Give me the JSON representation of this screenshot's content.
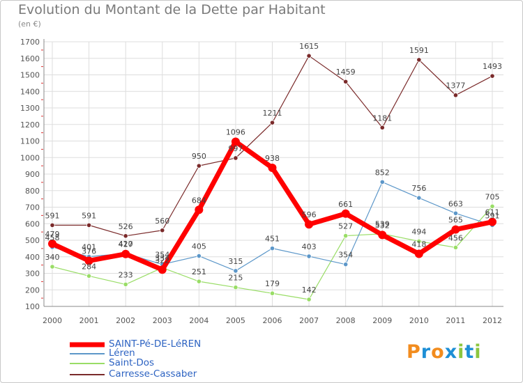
{
  "title": "Evolution du Montant de la Dette par Habitant",
  "subtitle": "(en €)",
  "logo_text": "Proxiti",
  "colors": {
    "saint_pe": "#ff0000",
    "leren": "#5c97c9",
    "saint_dos": "#99dd66",
    "carresse": "#7a2a2a",
    "grid": "#dddddd",
    "axis_text": "#555555"
  },
  "chart_data": {
    "type": "line",
    "title": "Evolution du Montant de la Dette par Habitant",
    "subtitle": "(en €)",
    "x": [
      "2000",
      "2001",
      "2002",
      "2003",
      "2004",
      "2005",
      "2006",
      "2007",
      "2008",
      "2009",
      "2010",
      "2011",
      "2012"
    ],
    "ylim": [
      100,
      1700
    ],
    "yticks": [
      100,
      200,
      300,
      400,
      500,
      600,
      700,
      800,
      900,
      1000,
      1100,
      1200,
      1300,
      1400,
      1500,
      1600,
      1700
    ],
    "grid": true,
    "legend_position": "bottom-left",
    "series": [
      {
        "name": "SAINT-Pé-DE-LéREN",
        "color": "#ff0000",
        "width": 7,
        "values": [
          479,
          376,
          417,
          322,
          684,
          1096,
          938,
          596,
          661,
          532,
          418,
          565,
          611
        ]
      },
      {
        "name": "Léren",
        "color": "#5c97c9",
        "width": 1.2,
        "values": [
          458,
          401,
          420,
          354,
          405,
          315,
          451,
          403,
          354,
          852,
          756,
          663,
          591
        ]
      },
      {
        "name": "Saint-Dos",
        "color": "#99dd66",
        "width": 1.2,
        "values": [
          340,
          284,
          233,
          334,
          251,
          215,
          179,
          142,
          527,
          539,
          494,
          456,
          705
        ]
      },
      {
        "name": "Carresse-Cassaber",
        "color": "#7a2a2a",
        "width": 1.2,
        "values": [
          591,
          591,
          526,
          560,
          950,
          997,
          1211,
          1615,
          1459,
          1181,
          1591,
          1377,
          1493
        ]
      }
    ]
  }
}
